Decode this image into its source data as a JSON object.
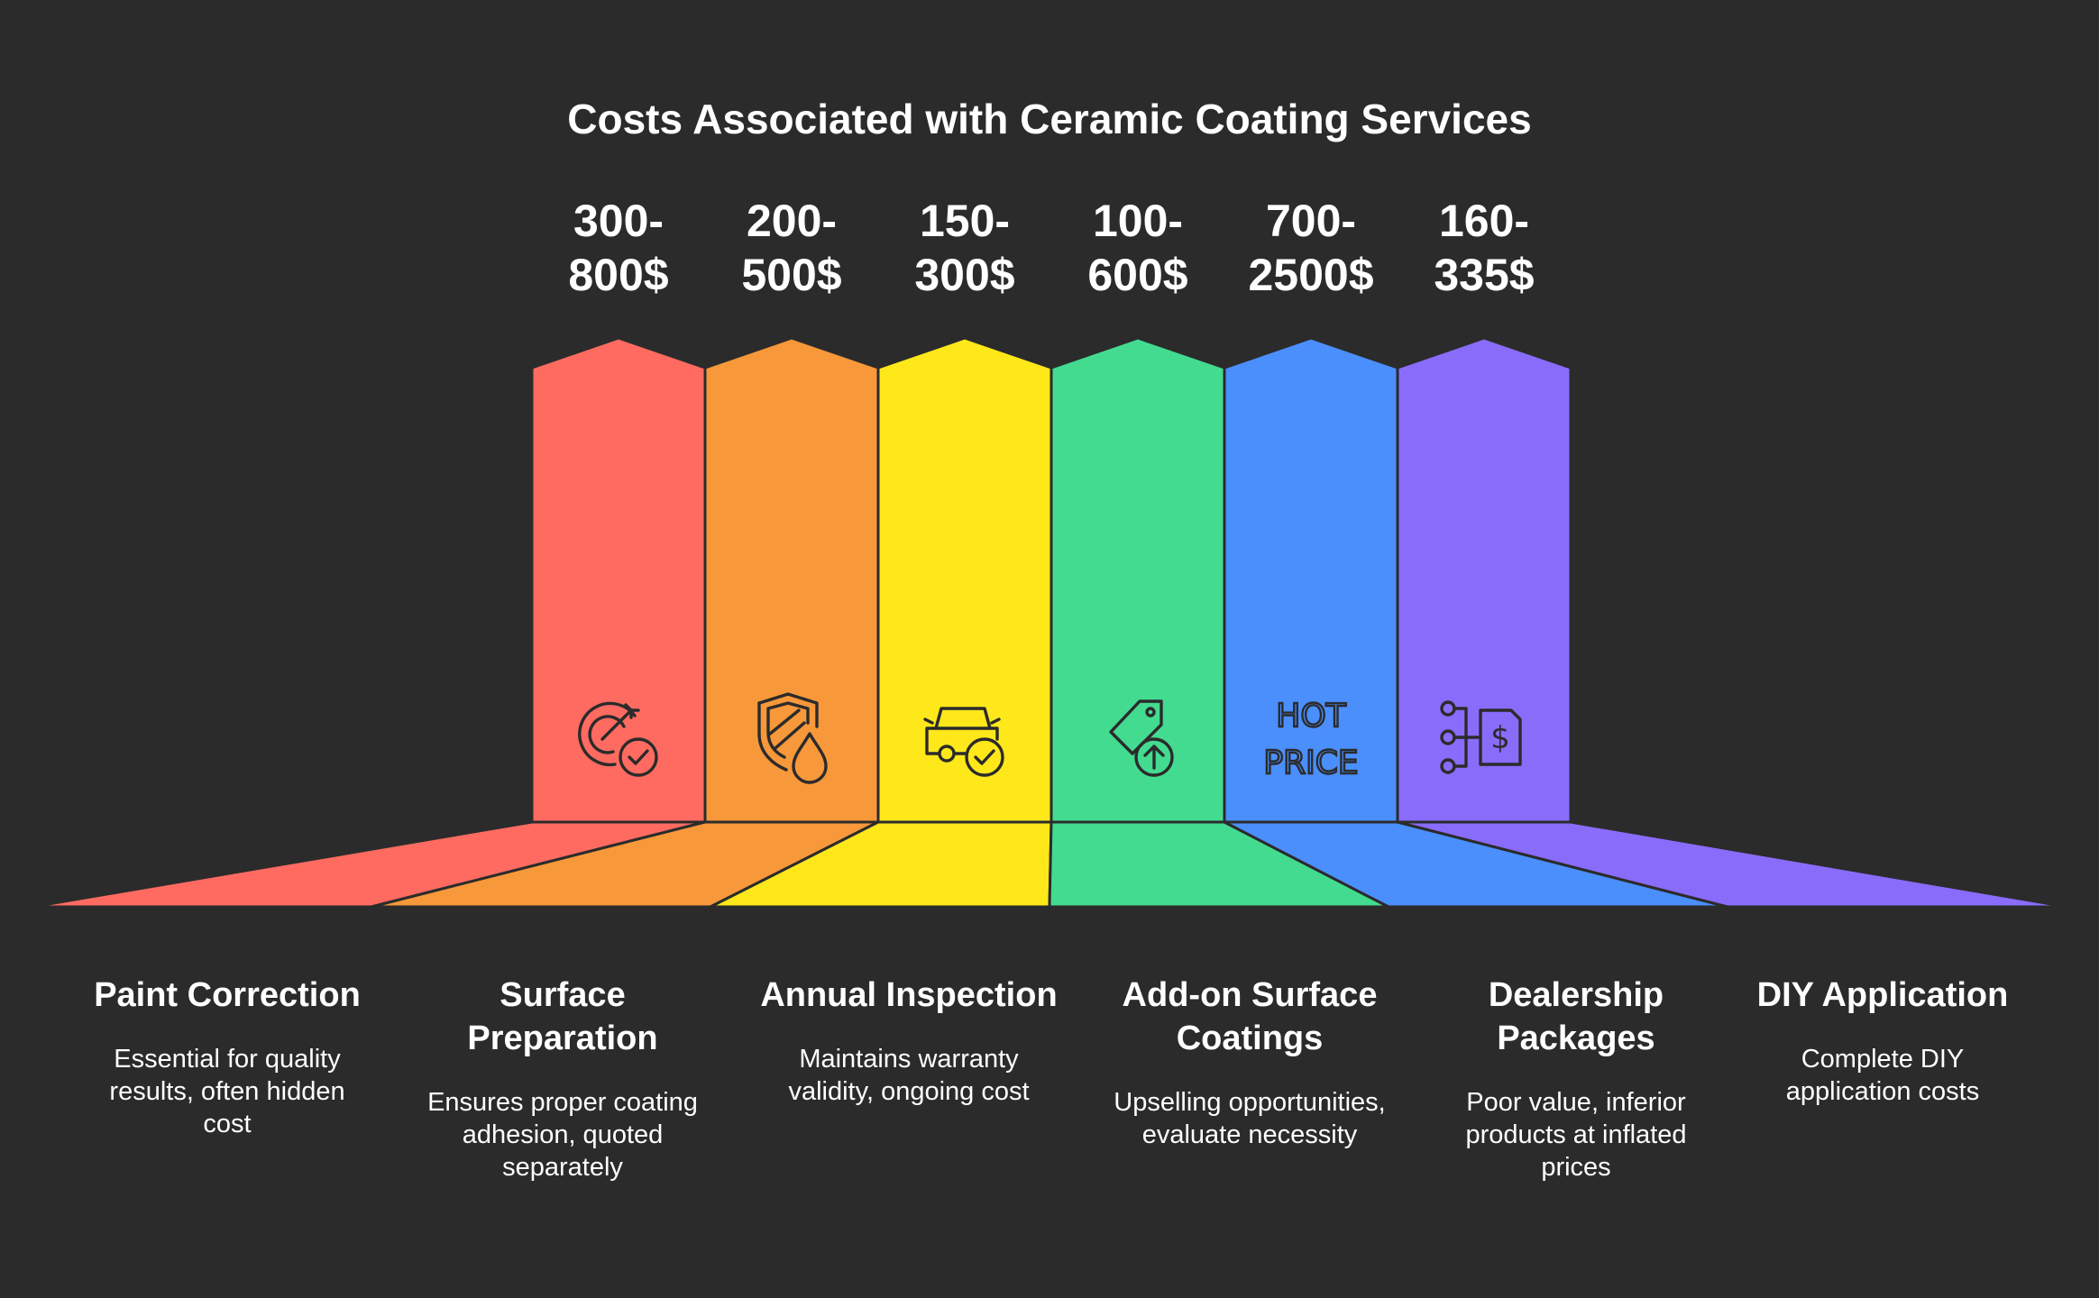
{
  "title": "Costs Associated with Ceramic Coating Services",
  "items": [
    {
      "price_line1": "300-",
      "price_line2": "800$",
      "label_lines": [
        "Paint Correction"
      ],
      "desc_lines": [
        "Essential for quality",
        "results, often hidden",
        "cost"
      ],
      "color": "#ff6b61",
      "icon": "target-check-icon"
    },
    {
      "price_line1": "200-",
      "price_line2": "500$",
      "label_lines": [
        "Surface",
        "Preparation"
      ],
      "desc_lines": [
        "Ensures proper coating",
        "adhesion, quoted",
        "separately"
      ],
      "color": "#f7983a",
      "icon": "shield-drop-icon"
    },
    {
      "price_line1": "150-",
      "price_line2": "300$",
      "label_lines": [
        "Annual Inspection"
      ],
      "desc_lines": [
        "Maintains warranty",
        "validity, ongoing cost"
      ],
      "color": "#ffe81a",
      "icon": "car-check-icon"
    },
    {
      "price_line1": "100-",
      "price_line2": "600$",
      "label_lines": [
        "Add-on Surface",
        "Coatings"
      ],
      "desc_lines": [
        "Upselling opportunities,",
        "evaluate necessity"
      ],
      "color": "#43db90",
      "icon": "tag-arrow-up-icon"
    },
    {
      "price_line1": "700-",
      "price_line2": "2500$",
      "label_lines": [
        "Dealership",
        "Packages"
      ],
      "desc_lines": [
        "Poor value, inferior",
        "products at inflated",
        "prices"
      ],
      "color": "#4b8ffc",
      "icon": "hot-price-icon",
      "icon_text": [
        "HOT",
        "PRICE"
      ]
    },
    {
      "price_line1": "160-",
      "price_line2": "335$",
      "label_lines": [
        "DIY Application"
      ],
      "desc_lines": [
        "Complete DIY",
        "application costs"
      ],
      "color": "#8a6cfb",
      "icon": "flow-dollar-doc-icon"
    }
  ]
}
